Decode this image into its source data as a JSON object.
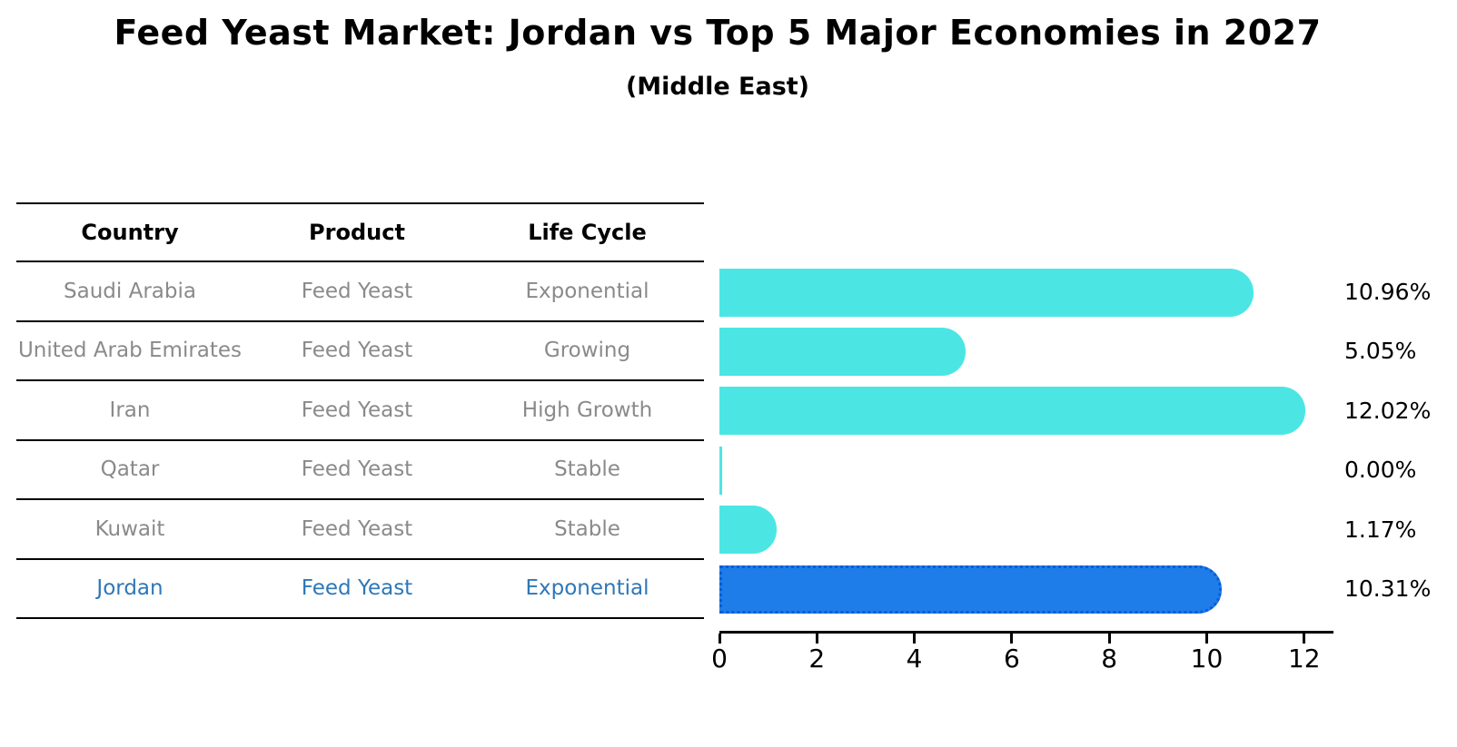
{
  "title": "Feed Yeast Market: Jordan vs Top 5 Major Economies in 2027",
  "subtitle": "(Middle East)",
  "table": {
    "headers": [
      "Country",
      "Product",
      "Life Cycle"
    ],
    "rows": [
      {
        "country": "Saudi Arabia",
        "product": "Feed Yeast",
        "life_cycle": "Exponential",
        "highlight": false
      },
      {
        "country": "United Arab Emirates",
        "product": "Feed Yeast",
        "life_cycle": "Growing",
        "highlight": false
      },
      {
        "country": "Iran",
        "product": "Feed Yeast",
        "life_cycle": "High Growth",
        "highlight": false
      },
      {
        "country": "Qatar",
        "product": "Feed Yeast",
        "life_cycle": "Stable",
        "highlight": false
      },
      {
        "country": "Kuwait",
        "product": "Feed Yeast",
        "life_cycle": "Stable",
        "highlight": false
      },
      {
        "country": "Jordan",
        "product": "Feed Yeast",
        "life_cycle": "Exponential",
        "highlight": true
      }
    ]
  },
  "chart_data": {
    "type": "bar",
    "orientation": "horizontal",
    "title": "Feed Yeast Market: Jordan vs Top 5 Major Economies in 2027 (Middle East)",
    "categories": [
      "Saudi Arabia",
      "United Arab Emirates",
      "Iran",
      "Qatar",
      "Kuwait",
      "Jordan"
    ],
    "values": [
      10.96,
      5.05,
      12.02,
      0.0,
      1.17,
      10.31
    ],
    "value_labels": [
      "10.96%",
      "5.05%",
      "12.02%",
      "0.00%",
      "1.17%",
      "10.31%"
    ],
    "xlabel": "",
    "ylabel": "",
    "xticks": [
      0,
      2,
      4,
      6,
      8,
      10,
      12
    ],
    "xlim": [
      0,
      12.6
    ],
    "grid": false,
    "legend": false,
    "highlight_index": 5,
    "colors": {
      "bar": "#4be6e4",
      "highlight_bar": "#1e7de8",
      "highlight_border": "#0b5bd7",
      "table_text": "#8a8a8a",
      "highlight_text": "#2e77b8",
      "axis": "#000000"
    }
  }
}
